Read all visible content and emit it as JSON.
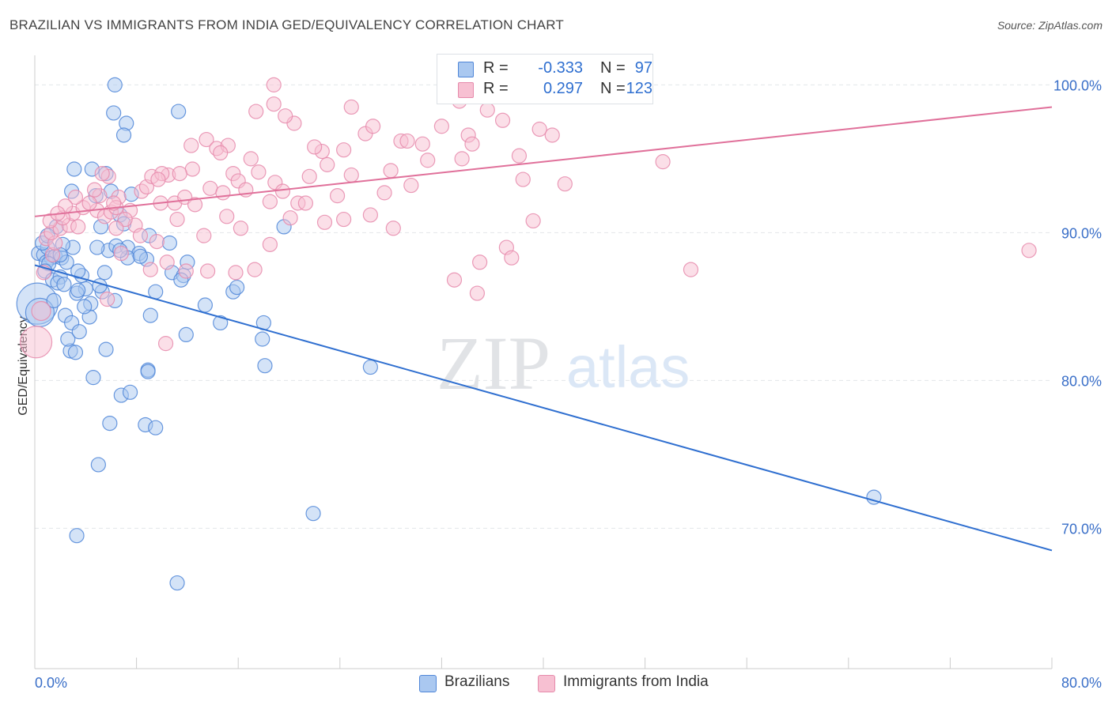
{
  "title": "BRAZILIAN VS IMMIGRANTS FROM INDIA GED/EQUIVALENCY CORRELATION CHART",
  "source": "Source: ZipAtlas.com",
  "watermark": {
    "zip": "ZIP",
    "atlas": "atlas"
  },
  "legend_top": {
    "rows": [
      {
        "r_label": "R =",
        "r_value": "-0.333",
        "n_label": "N =",
        "n_value": "97"
      },
      {
        "r_label": "R =",
        "r_value": "0.297",
        "n_label": "N =",
        "n_value": "123"
      }
    ]
  },
  "legend_bottom": {
    "items": [
      "Brazilians",
      "Immigrants from India"
    ]
  },
  "colors": {
    "blue_fill": "#aac8f0",
    "blue_stroke": "#4f86d8",
    "blue_line": "#2f6fd0",
    "pink_fill": "#f7c0d2",
    "pink_stroke": "#e68aab",
    "pink_line": "#e0709a",
    "tick_text": "#3a6fc8",
    "grid": "#e3e6ea"
  },
  "chart_data": {
    "type": "scatter",
    "title": "BRAZILIAN VS IMMIGRANTS FROM INDIA GED/EQUIVALENCY CORRELATION CHART",
    "xlabel": "",
    "ylabel": "GED/Equivalency",
    "xlim": [
      0,
      80
    ],
    "ylim": [
      60.5,
      102
    ],
    "x_tick_labels": [
      "0.0%",
      "80.0%"
    ],
    "y_ticks": [
      {
        "value": 100,
        "label": "100.0%"
      },
      {
        "value": 90,
        "label": "90.0%"
      },
      {
        "value": 80,
        "label": "80.0%"
      },
      {
        "value": 70,
        "label": "70.0%"
      }
    ],
    "series": [
      {
        "name": "Brazilians",
        "color": "blue",
        "r": -0.333,
        "n": 97,
        "trend": {
          "x1": 0,
          "y1": 87.8,
          "x2": 80,
          "y2": 68.5
        },
        "points": [
          [
            0.2,
            85.2,
            26
          ],
          [
            0.4,
            84.6,
            18
          ],
          [
            0.3,
            88.6,
            9
          ],
          [
            0.7,
            88.5,
            9
          ],
          [
            1.0,
            89.0,
            9
          ],
          [
            1.3,
            88.3,
            9
          ],
          [
            0.6,
            89.3,
            9
          ],
          [
            0.9,
            88.0,
            9
          ],
          [
            1.6,
            88.4,
            9
          ],
          [
            1.1,
            87.9,
            9
          ],
          [
            2.1,
            88.3,
            9
          ],
          [
            0.8,
            87.4,
            9
          ],
          [
            1.4,
            86.8,
            9
          ],
          [
            2.0,
            87.0,
            9
          ],
          [
            2.5,
            88.0,
            9
          ],
          [
            3.7,
            87.1,
            9
          ],
          [
            1.8,
            86.6,
            9
          ],
          [
            2.3,
            86.5,
            9
          ],
          [
            3.4,
            87.4,
            9
          ],
          [
            1.5,
            85.4,
            9
          ],
          [
            4.0,
            86.2,
            9
          ],
          [
            4.3,
            84.3,
            9
          ],
          [
            3.0,
            89.0,
            9
          ],
          [
            5.5,
            87.3,
            9
          ],
          [
            3.3,
            85.9,
            9
          ],
          [
            2.4,
            84.4,
            9
          ],
          [
            4.4,
            85.2,
            9
          ],
          [
            3.9,
            85.0,
            9
          ],
          [
            2.9,
            83.9,
            9
          ],
          [
            2.8,
            82.0,
            9
          ],
          [
            2.6,
            82.8,
            9
          ],
          [
            3.2,
            81.9,
            9
          ],
          [
            3.5,
            83.3,
            9
          ],
          [
            5.6,
            82.1,
            9
          ],
          [
            4.6,
            80.2,
            9
          ],
          [
            6.8,
            79.0,
            9
          ],
          [
            7.5,
            79.2,
            9
          ],
          [
            5.9,
            77.1,
            9
          ],
          [
            8.7,
            77.0,
            9
          ],
          [
            9.5,
            76.8,
            9
          ],
          [
            5.0,
            74.3,
            9
          ],
          [
            3.3,
            69.5,
            9
          ],
          [
            11.2,
            66.3,
            9
          ],
          [
            6.3,
            100.0,
            9
          ],
          [
            6.2,
            98.1,
            9
          ],
          [
            7.2,
            97.4,
            9
          ],
          [
            7.0,
            96.6,
            9
          ],
          [
            11.3,
            98.2,
            9
          ],
          [
            3.1,
            94.3,
            9
          ],
          [
            4.5,
            94.3,
            9
          ],
          [
            5.6,
            94.0,
            9
          ],
          [
            2.9,
            92.8,
            9
          ],
          [
            4.8,
            92.5,
            9
          ],
          [
            6.0,
            92.8,
            9
          ],
          [
            7.6,
            92.6,
            9
          ],
          [
            6.7,
            91.2,
            9
          ],
          [
            5.2,
            90.4,
            9
          ],
          [
            7.0,
            90.6,
            9
          ],
          [
            5.8,
            88.8,
            9
          ],
          [
            6.4,
            89.1,
            9
          ],
          [
            7.3,
            89.0,
            9
          ],
          [
            8.2,
            88.6,
            9
          ],
          [
            8.8,
            88.2,
            9
          ],
          [
            7.3,
            88.3,
            9
          ],
          [
            10.6,
            89.3,
            9
          ],
          [
            9.0,
            89.8,
            9
          ],
          [
            12.0,
            88.0,
            9
          ],
          [
            10.8,
            87.3,
            9
          ],
          [
            11.7,
            87.1,
            9
          ],
          [
            11.5,
            86.8,
            9
          ],
          [
            9.5,
            86.0,
            9
          ],
          [
            13.4,
            85.1,
            9
          ],
          [
            15.6,
            86.0,
            9
          ],
          [
            15.9,
            86.3,
            9
          ],
          [
            5.3,
            86.0,
            9
          ],
          [
            6.3,
            85.4,
            9
          ],
          [
            9.1,
            84.4,
            9
          ],
          [
            14.6,
            83.9,
            9
          ],
          [
            11.9,
            83.1,
            9
          ],
          [
            18.0,
            83.9,
            9
          ],
          [
            17.9,
            82.8,
            9
          ],
          [
            8.9,
            80.7,
            9
          ],
          [
            8.9,
            80.6,
            9
          ],
          [
            18.1,
            81.0,
            9
          ],
          [
            26.4,
            80.9,
            9
          ],
          [
            19.6,
            90.4,
            9
          ],
          [
            21.9,
            71.0,
            9
          ],
          [
            66.0,
            72.1,
            9
          ],
          [
            1.7,
            90.4,
            9
          ],
          [
            2.2,
            89.2,
            9
          ],
          [
            1.0,
            89.8,
            9
          ],
          [
            4.9,
            89.0,
            9
          ],
          [
            6.7,
            88.8,
            9
          ],
          [
            8.3,
            88.4,
            9
          ],
          [
            3.4,
            86.1,
            9
          ],
          [
            5.1,
            86.4,
            9
          ],
          [
            2.0,
            88.5,
            9
          ]
        ]
      },
      {
        "name": "Immigrants from India",
        "color": "pink",
        "r": 0.297,
        "n": 123,
        "trend": {
          "x1": 0,
          "y1": 91.1,
          "x2": 80,
          "y2": 98.5
        },
        "points": [
          [
            0.1,
            82.6,
            20
          ],
          [
            0.5,
            84.7,
            12
          ],
          [
            0.7,
            87.3,
            9
          ],
          [
            1.4,
            88.5,
            9
          ],
          [
            0.9,
            89.6,
            9
          ],
          [
            1.6,
            89.3,
            9
          ],
          [
            1.3,
            90.0,
            9
          ],
          [
            2.0,
            90.3,
            9
          ],
          [
            2.7,
            90.5,
            9
          ],
          [
            3.4,
            90.4,
            9
          ],
          [
            1.2,
            90.8,
            9
          ],
          [
            3.0,
            91.3,
            9
          ],
          [
            2.2,
            91.0,
            9
          ],
          [
            3.8,
            91.7,
            9
          ],
          [
            4.9,
            91.5,
            9
          ],
          [
            5.1,
            92.5,
            9
          ],
          [
            5.5,
            91.1,
            9
          ],
          [
            4.3,
            92.0,
            9
          ],
          [
            6.6,
            92.4,
            9
          ],
          [
            6.0,
            91.4,
            9
          ],
          [
            7.5,
            91.5,
            9
          ],
          [
            8.4,
            92.8,
            9
          ],
          [
            8.8,
            93.1,
            9
          ],
          [
            9.2,
            93.8,
            9
          ],
          [
            10.5,
            93.9,
            9
          ],
          [
            10.0,
            94.0,
            9
          ],
          [
            9.9,
            92.0,
            9
          ],
          [
            11.0,
            92.0,
            9
          ],
          [
            11.8,
            92.4,
            9
          ],
          [
            12.3,
            95.9,
            9
          ],
          [
            13.5,
            96.3,
            9
          ],
          [
            14.3,
            95.7,
            9
          ],
          [
            15.2,
            95.9,
            9
          ],
          [
            15.6,
            94.0,
            9
          ],
          [
            16.0,
            93.5,
            9
          ],
          [
            17.0,
            95.0,
            9
          ],
          [
            17.6,
            94.1,
            9
          ],
          [
            18.9,
            93.4,
            9
          ],
          [
            19.5,
            92.8,
            9
          ],
          [
            21.6,
            93.8,
            9
          ],
          [
            22.6,
            95.5,
            9
          ],
          [
            23.0,
            94.6,
            9
          ],
          [
            24.3,
            95.6,
            9
          ],
          [
            26.0,
            96.7,
            9
          ],
          [
            26.6,
            97.2,
            9
          ],
          [
            27.5,
            92.7,
            9
          ],
          [
            28.8,
            96.2,
            9
          ],
          [
            29.3,
            96.2,
            9
          ],
          [
            29.6,
            93.2,
            9
          ],
          [
            30.5,
            96.0,
            9
          ],
          [
            32.0,
            97.2,
            9
          ],
          [
            33.4,
            98.9,
            9
          ],
          [
            34.1,
            96.6,
            9
          ],
          [
            34.4,
            96.0,
            9
          ],
          [
            35.6,
            98.3,
            9
          ],
          [
            36.8,
            97.6,
            9
          ],
          [
            39.7,
            97.0,
            9
          ],
          [
            35.0,
            88.0,
            9
          ],
          [
            33.0,
            86.8,
            9
          ],
          [
            37.1,
            89.0,
            9
          ],
          [
            37.5,
            88.3,
            9
          ],
          [
            40.7,
            96.6,
            9
          ],
          [
            41.7,
            93.3,
            9
          ],
          [
            22.0,
            95.8,
            9
          ],
          [
            20.4,
            97.4,
            9
          ],
          [
            19.7,
            97.9,
            9
          ],
          [
            18.8,
            98.7,
            9
          ],
          [
            18.8,
            100.0,
            9
          ],
          [
            17.4,
            98.2,
            9
          ],
          [
            24.9,
            98.5,
            9
          ],
          [
            14.6,
            95.4,
            9
          ],
          [
            12.4,
            94.3,
            9
          ],
          [
            11.4,
            94.0,
            9
          ],
          [
            13.8,
            93.0,
            9
          ],
          [
            14.8,
            92.7,
            9
          ],
          [
            16.6,
            92.9,
            9
          ],
          [
            18.5,
            92.1,
            9
          ],
          [
            20.7,
            92.0,
            9
          ],
          [
            22.8,
            90.7,
            9
          ],
          [
            24.3,
            90.9,
            9
          ],
          [
            16.2,
            90.3,
            9
          ],
          [
            13.3,
            89.8,
            9
          ],
          [
            11.2,
            90.9,
            9
          ],
          [
            9.6,
            89.4,
            9
          ],
          [
            6.8,
            88.6,
            9
          ],
          [
            7.9,
            90.5,
            9
          ],
          [
            5.8,
            93.8,
            9
          ],
          [
            4.7,
            92.9,
            9
          ],
          [
            3.2,
            92.4,
            9
          ],
          [
            2.4,
            91.8,
            9
          ],
          [
            1.8,
            91.3,
            9
          ],
          [
            6.4,
            91.7,
            9
          ],
          [
            7.1,
            90.9,
            9
          ],
          [
            8.3,
            89.8,
            9
          ],
          [
            9.1,
            87.5,
            9
          ],
          [
            10.4,
            88.0,
            9
          ],
          [
            11.9,
            87.4,
            9
          ],
          [
            13.6,
            87.4,
            9
          ],
          [
            15.8,
            87.3,
            9
          ],
          [
            17.3,
            87.5,
            9
          ],
          [
            18.5,
            89.2,
            9
          ],
          [
            20.1,
            91.0,
            9
          ],
          [
            21.3,
            92.0,
            9
          ],
          [
            23.8,
            92.5,
            9
          ],
          [
            26.4,
            91.2,
            9
          ],
          [
            28.2,
            90.3,
            9
          ],
          [
            30.9,
            94.9,
            9
          ],
          [
            33.6,
            95.0,
            9
          ],
          [
            38.1,
            95.2,
            9
          ],
          [
            38.4,
            93.6,
            9
          ],
          [
            28.0,
            94.2,
            9
          ],
          [
            24.9,
            93.9,
            9
          ],
          [
            6.2,
            92.0,
            9
          ],
          [
            5.3,
            94.0,
            9
          ],
          [
            9.7,
            93.6,
            9
          ],
          [
            12.6,
            91.9,
            9
          ],
          [
            15.1,
            91.1,
            9
          ],
          [
            6.4,
            90.3,
            9
          ],
          [
            39.2,
            90.8,
            9
          ],
          [
            49.4,
            94.8,
            9
          ],
          [
            78.2,
            88.8,
            9
          ],
          [
            51.6,
            87.5,
            9
          ],
          [
            10.3,
            82.5,
            9
          ],
          [
            5.7,
            85.5,
            9
          ],
          [
            34.8,
            85.9,
            9
          ]
        ]
      }
    ]
  }
}
